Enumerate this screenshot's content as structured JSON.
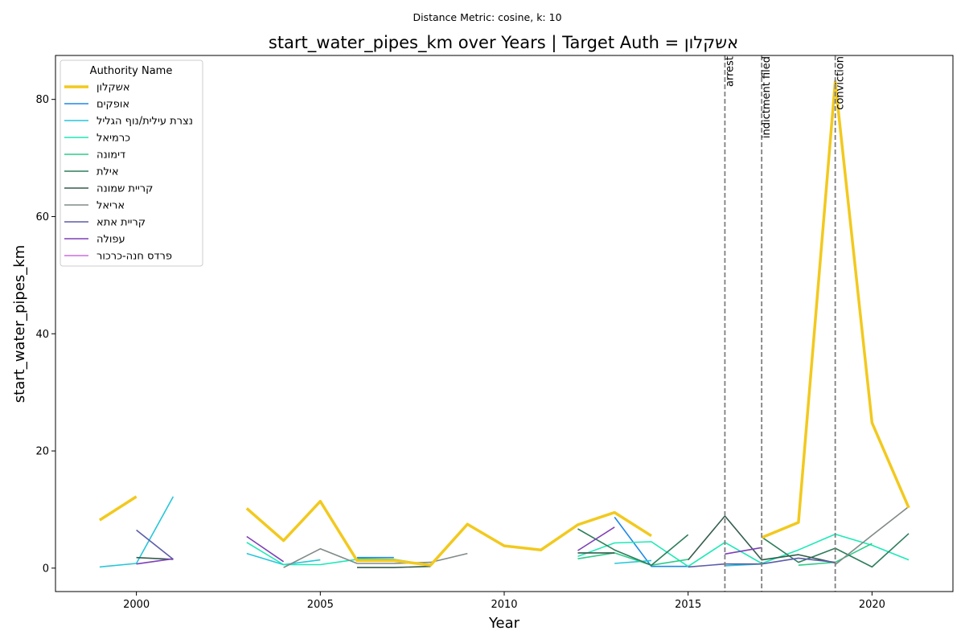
{
  "chart_data": {
    "type": "line",
    "subtitle": "Distance Metric: cosine, k: 10",
    "title": "start_water_pipes_km over Years | Target Auth = אשקלון",
    "xlabel": "Year",
    "ylabel": "start_water_pipes_km",
    "xlim": [
      1997.8,
      2022.2
    ],
    "ylim": [
      -4.0,
      87.5
    ],
    "xticks": [
      2000,
      2005,
      2010,
      2015,
      2020
    ],
    "yticks": [
      0,
      20,
      40,
      60,
      80
    ],
    "grid": false,
    "legend": {
      "title": "Authority Name",
      "position": "top-left"
    },
    "annotations": [
      {
        "x": 2016,
        "label": "arrest"
      },
      {
        "x": 2017,
        "label": "indictment filed"
      },
      {
        "x": 2019,
        "label": "conviction"
      }
    ],
    "series": [
      {
        "name": "אשקלון",
        "color": "#f2c91e",
        "target": true,
        "points": [
          [
            1999,
            8.2
          ],
          [
            2000,
            12.2
          ],
          [
            2001,
            null
          ],
          [
            2003,
            10.2
          ],
          [
            2004,
            4.7
          ],
          [
            2005,
            11.4
          ],
          [
            2006,
            1.3
          ],
          [
            2007,
            1.3
          ],
          [
            2008,
            0.5
          ],
          [
            2009,
            7.5
          ],
          [
            2010,
            3.8
          ],
          [
            2011,
            3.1
          ],
          [
            2012,
            7.4
          ],
          [
            2013,
            9.5
          ],
          [
            2014,
            5.5
          ],
          [
            2015,
            null
          ],
          [
            2017,
            5.2
          ],
          [
            2018,
            7.8
          ],
          [
            2019,
            83.0
          ],
          [
            2020,
            24.8
          ],
          [
            2021,
            10.3
          ]
        ]
      },
      {
        "name": "אופקים",
        "color": "#1e88e5",
        "points": [
          [
            2006,
            1.8
          ],
          [
            2007,
            1.8
          ],
          [
            2008,
            null
          ],
          [
            2013,
            8.7
          ],
          [
            2014,
            0.3
          ],
          [
            2015,
            0.3
          ]
        ]
      },
      {
        "name": "נצרת עילית/נוף הגליל",
        "color": "#26c6da",
        "points": [
          [
            1999,
            0.2
          ],
          [
            2000,
            0.8
          ],
          [
            2001,
            12.2
          ],
          [
            2002,
            null
          ],
          [
            2003,
            2.5
          ],
          [
            2004,
            0.6
          ],
          [
            2005,
            1.4
          ],
          [
            2006,
            null
          ],
          [
            2013,
            0.8
          ],
          [
            2014,
            1.3
          ],
          [
            2015,
            null
          ],
          [
            2016,
            0.4
          ],
          [
            2017,
            0.7
          ]
        ]
      },
      {
        "name": "כרמיאל",
        "color": "#1de9b6",
        "points": [
          [
            2003,
            4.4
          ],
          [
            2004,
            0.6
          ],
          [
            2005,
            0.6
          ],
          [
            2006,
            1.5
          ],
          [
            2007,
            null
          ],
          [
            2012,
            2.0
          ],
          [
            2013,
            4.3
          ],
          [
            2014,
            4.5
          ],
          [
            2015,
            0.3
          ],
          [
            2016,
            4.4
          ],
          [
            2017,
            0.8
          ],
          [
            2018,
            3.1
          ],
          [
            2019,
            5.8
          ],
          [
            2020,
            3.9
          ],
          [
            2021,
            1.4
          ]
        ]
      },
      {
        "name": "דימונה",
        "color": "#2ecc8a",
        "points": [
          [
            2006,
            1.6
          ],
          [
            2007,
            1.5
          ],
          [
            2008,
            0.5
          ],
          [
            2009,
            null
          ],
          [
            2012,
            1.6
          ],
          [
            2013,
            2.6
          ],
          [
            2014,
            0.5
          ],
          [
            2015,
            1.5
          ],
          [
            2016,
            null
          ],
          [
            2018,
            0.5
          ],
          [
            2019,
            1.0
          ],
          [
            2020,
            4.2
          ]
        ]
      },
      {
        "name": "אילת",
        "color": "#2e7d5b",
        "points": [
          [
            2012,
            6.7
          ],
          [
            2013,
            3.1
          ],
          [
            2014,
            0.5
          ],
          [
            2015,
            5.7
          ],
          [
            2016,
            null
          ],
          [
            2017,
            5.3
          ],
          [
            2018,
            1.0
          ],
          [
            2019,
            3.4
          ],
          [
            2020,
            0.2
          ],
          [
            2021,
            5.9
          ]
        ]
      },
      {
        "name": "קריית שמונה",
        "color": "#335c4b",
        "points": [
          [
            2000,
            1.8
          ],
          [
            2001,
            1.5
          ],
          [
            2002,
            null
          ],
          [
            2006,
            0.1
          ],
          [
            2007,
            0.1
          ],
          [
            2008,
            0.3
          ],
          [
            2009,
            null
          ],
          [
            2012,
            2.6
          ],
          [
            2013,
            2.6
          ],
          [
            2014,
            null
          ],
          [
            2015,
            1.4
          ],
          [
            2016,
            8.9
          ],
          [
            2017,
            1.4
          ],
          [
            2018,
            2.3
          ],
          [
            2019,
            0.9
          ]
        ]
      },
      {
        "name": "אריאל",
        "color": "#808a87",
        "points": [
          [
            2004,
            0.1
          ],
          [
            2005,
            3.3
          ],
          [
            2006,
            0.8
          ],
          [
            2007,
            0.8
          ],
          [
            2008,
            1.0
          ],
          [
            2009,
            2.5
          ],
          [
            2010,
            null
          ],
          [
            2019,
            0.6
          ],
          [
            2020,
            5.6
          ],
          [
            2021,
            10.5
          ]
        ]
      },
      {
        "name": "קריית אתא",
        "color": "#5c5ca8",
        "points": [
          [
            2000,
            6.5
          ],
          [
            2001,
            1.5
          ],
          [
            2002,
            null
          ],
          [
            2015,
            0.2
          ],
          [
            2016,
            0.7
          ],
          [
            2017,
            0.7
          ],
          [
            2018,
            1.7
          ],
          [
            2019,
            1.0
          ]
        ]
      },
      {
        "name": "עפולה",
        "color": "#7e3fb8",
        "points": [
          [
            2000,
            0.7
          ],
          [
            2001,
            1.6
          ],
          [
            2002,
            null
          ],
          [
            2003,
            5.4
          ],
          [
            2004,
            1.1
          ],
          [
            2005,
            null
          ],
          [
            2012,
            3.0
          ],
          [
            2013,
            7.0
          ],
          [
            2014,
            null
          ],
          [
            2016,
            2.4
          ],
          [
            2017,
            3.5
          ]
        ]
      },
      {
        "name": "פרדס חנה-כרכור",
        "color": "#cc6fe0",
        "points": []
      }
    ]
  }
}
